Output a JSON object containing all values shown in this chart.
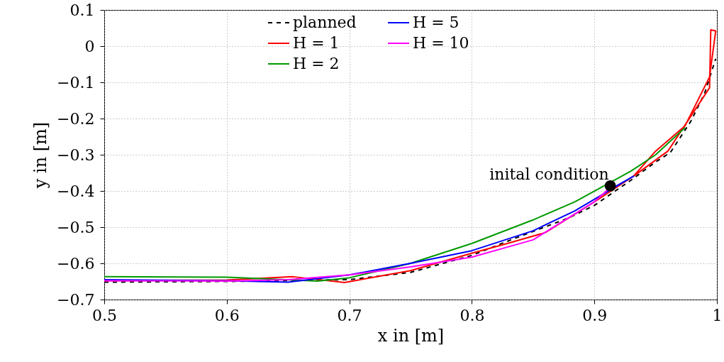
{
  "chart_data": {
    "type": "line",
    "xlabel": "x in [m]",
    "ylabel": "y in [m]",
    "xlim": [
      0.5,
      1.0
    ],
    "ylim": [
      -0.7,
      0.1
    ],
    "xticks": [
      0.5,
      0.6,
      0.7,
      0.8,
      0.9,
      1
    ],
    "yticks": [
      -0.7,
      -0.6,
      -0.5,
      -0.4,
      -0.3,
      -0.2,
      -0.1,
      0,
      0.1
    ],
    "grid": true,
    "legend": "top",
    "series": [
      {
        "name": "planned",
        "color": "#000000",
        "line_style": "dashed",
        "x": [
          0.5,
          0.6,
          0.7,
          0.75,
          0.8,
          0.832,
          0.878,
          0.9,
          0.93,
          0.95,
          0.962,
          0.979,
          0.99,
          0.999
        ],
        "values": [
          -0.652,
          -0.65,
          -0.645,
          -0.625,
          -0.578,
          -0.535,
          -0.476,
          -0.44,
          -0.37,
          -0.32,
          -0.294,
          -0.206,
          -0.13,
          -0.035
        ]
      },
      {
        "name": "H = 1",
        "color": "#ff0000",
        "x": [
          0.5,
          0.6,
          0.654,
          0.696,
          0.75,
          0.8,
          0.829,
          0.86,
          0.9,
          0.932,
          0.96,
          0.994,
          0.995,
          0.999,
          0.994,
          0.974,
          0.95,
          0.932
        ],
        "values": [
          -0.648,
          -0.646,
          -0.637,
          -0.653,
          -0.62,
          -0.572,
          -0.545,
          -0.515,
          -0.43,
          -0.359,
          -0.29,
          -0.115,
          0.045,
          0.042,
          -0.085,
          -0.22,
          -0.29,
          -0.359
        ]
      },
      {
        "name": "H = 2",
        "color": "#009900",
        "x": [
          0.5,
          0.6,
          0.674,
          0.7,
          0.75,
          0.8,
          0.85,
          0.884,
          0.93,
          0.95,
          0.974
        ],
        "values": [
          -0.637,
          -0.638,
          -0.649,
          -0.64,
          -0.6,
          -0.545,
          -0.48,
          -0.43,
          -0.345,
          -0.3,
          -0.225
        ]
      },
      {
        "name": "H = 5",
        "color": "#0000ff",
        "x": [
          0.5,
          0.6,
          0.65,
          0.7,
          0.75,
          0.8,
          0.85,
          0.884,
          0.932,
          0.913
        ],
        "values": [
          -0.645,
          -0.648,
          -0.652,
          -0.632,
          -0.6,
          -0.565,
          -0.51,
          -0.455,
          -0.359,
          -0.396
        ]
      },
      {
        "name": "H = 10",
        "color": "#ff00ff",
        "x": [
          0.5,
          0.6,
          0.65,
          0.7,
          0.75,
          0.8,
          0.85,
          0.9,
          0.913
        ],
        "values": [
          -0.648,
          -0.649,
          -0.645,
          -0.632,
          -0.61,
          -0.583,
          -0.535,
          -0.43,
          -0.39
        ]
      },
      {
        "type": "scatter",
        "color": "#000000",
        "marker": "circle",
        "x": [
          0.913
        ],
        "values": [
          -0.386
        ]
      }
    ],
    "annotations": [
      {
        "text": "inital condition",
        "x": 0.913,
        "y": -0.386
      }
    ]
  }
}
